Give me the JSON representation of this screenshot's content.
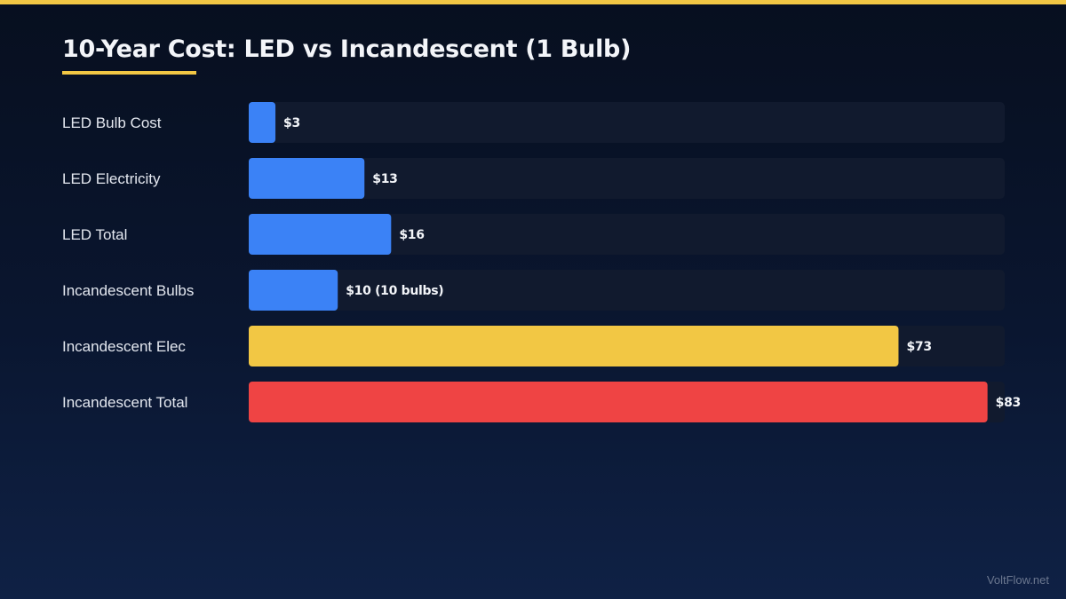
{
  "chart_data": {
    "type": "bar",
    "orientation": "horizontal",
    "title": "10-Year Cost: LED vs Incandescent (1 Bulb)",
    "xlabel": "",
    "ylabel": "",
    "xlim": [
      0,
      85
    ],
    "grid": false,
    "legend": "none",
    "categories": [
      "LED Bulb Cost",
      "LED Electricity",
      "LED Total",
      "Incandescent Bulbs",
      "Incandescent Elec",
      "Incandescent Total"
    ],
    "values": [
      3,
      13,
      16,
      10,
      73,
      83
    ],
    "value_labels": [
      "$3",
      "$13",
      "$16",
      "$10 (10 bulbs)",
      "$73",
      "$83"
    ],
    "bar_colors": [
      "#3b82f6",
      "#3b82f6",
      "#3b82f6",
      "#3b82f6",
      "#f2c744",
      "#ef4444"
    ]
  },
  "colors": {
    "accent": "#f2c744",
    "track": "#111a2e"
  },
  "footer": {
    "site": "VoltFlow.net"
  }
}
